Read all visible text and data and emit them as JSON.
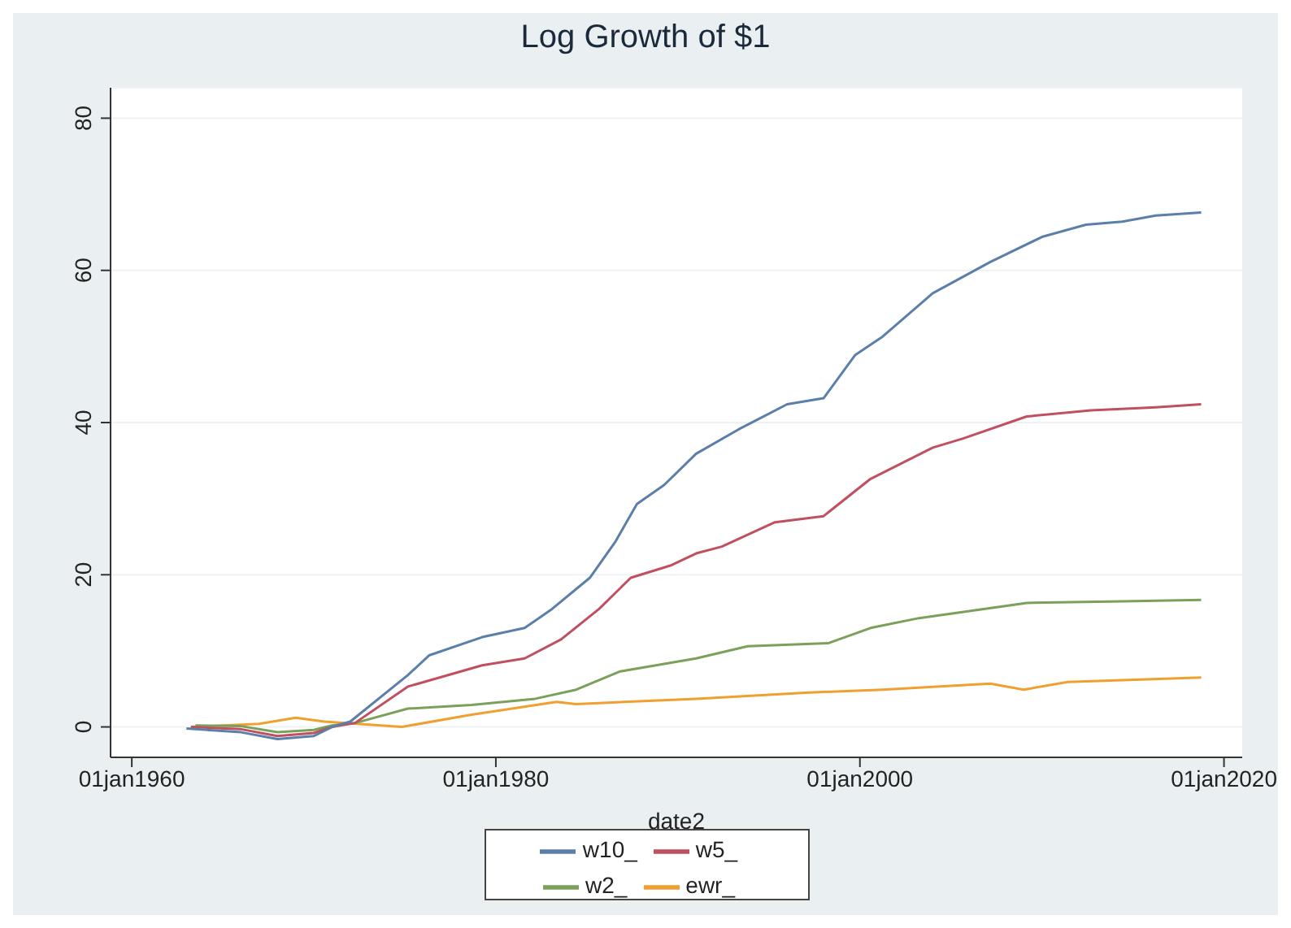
{
  "chart_data": {
    "type": "line",
    "title": "Log Growth of $1",
    "xlabel": "date2",
    "xlim": [
      "1958-11",
      "2021-01"
    ],
    "xticks": [
      {
        "value": "1960-01-01",
        "label": "01jan1960"
      },
      {
        "value": "1980-01-01",
        "label": "01jan1980"
      },
      {
        "value": "2000-01-01",
        "label": "01jan2000"
      },
      {
        "value": "2020-01-01",
        "label": "01jan2020"
      }
    ],
    "ylim": [
      -4,
      84
    ],
    "yticks": [
      0,
      20,
      40,
      60,
      80
    ],
    "grid": "y",
    "legend": "bottom",
    "marker": "none",
    "line_style": "solid",
    "series": [
      {
        "name": "w10_",
        "color": "#5b7fa8",
        "x": [
          "1963-01",
          "1966-01",
          "1968-01",
          "1970-01",
          "1971-01",
          "1972-01",
          "1975-03",
          "1976-05",
          "1979-04",
          "1981-08",
          "1983-02",
          "1985-03",
          "1986-08",
          "1987-10",
          "1989-04",
          "1991-01",
          "1993-05",
          "1996-01",
          "1998-01",
          "1999-10",
          "2001-04",
          "2004-01",
          "2007-03",
          "2010-01",
          "2012-06",
          "2014-06",
          "2016-04",
          "2018-10"
        ],
        "values": [
          -0.2,
          -0.7,
          -1.6,
          -1.2,
          0,
          0.7,
          6.8,
          9.4,
          11.8,
          13,
          15.5,
          19.6,
          24.4,
          29.3,
          31.8,
          35.9,
          39.1,
          42.4,
          43.2,
          48.9,
          51.3,
          57,
          61.1,
          64.4,
          66,
          66.4,
          67.2,
          67.6
        ]
      },
      {
        "name": "w5_",
        "color": "#c0505f",
        "x": [
          "1963-04",
          "1966-01",
          "1968-01",
          "1970-01",
          "1971-01",
          "1972-04",
          "1975-03",
          "1979-04",
          "1981-08",
          "1983-08",
          "1985-09",
          "1987-06",
          "1989-08",
          "1991-01",
          "1992-06",
          "1995-05",
          "1998-01",
          "2000-08",
          "2004-01",
          "2005-09",
          "2009-03",
          "2012-09",
          "2016-04",
          "2018-10"
        ],
        "values": [
          0,
          -0.3,
          -1.2,
          -0.8,
          0,
          0.5,
          5.3,
          8.1,
          9,
          11.5,
          15.5,
          19.6,
          21.2,
          22.8,
          23.7,
          26.9,
          27.7,
          32.6,
          36.7,
          37.9,
          40.8,
          41.6,
          42,
          42.4
        ]
      },
      {
        "name": "w2_",
        "color": "#7aa05a",
        "x": [
          "1963-07",
          "1966-01",
          "1968-01",
          "1970-01",
          "1971-01",
          "1972-04",
          "1975-03",
          "1978-09",
          "1982-03",
          "1984-06",
          "1986-11",
          "1991-01",
          "1993-11",
          "1998-04",
          "2000-08",
          "2003-04",
          "2009-03",
          "2014-06",
          "2018-10"
        ],
        "values": [
          0.2,
          0.1,
          -0.7,
          -0.4,
          0.2,
          0.5,
          2.4,
          2.9,
          3.7,
          4.9,
          7.3,
          9,
          10.6,
          11,
          13,
          14.3,
          16.3,
          16.5,
          16.7
        ]
      },
      {
        "name": "ewr_",
        "color": "#f0a030",
        "x": [
          "1963-04",
          "1967-01",
          "1969-01",
          "1970-08",
          "1974-11",
          "1978-09",
          "1983-05",
          "1984-06",
          "1991-01",
          "1997-01",
          "2001-04",
          "2007-03",
          "2009-01",
          "2011-06",
          "2018-10"
        ],
        "values": [
          0,
          0.4,
          1.2,
          0.7,
          0,
          1.6,
          3.3,
          3,
          3.7,
          4.5,
          4.9,
          5.7,
          4.9,
          5.9,
          6.5
        ]
      }
    ]
  }
}
